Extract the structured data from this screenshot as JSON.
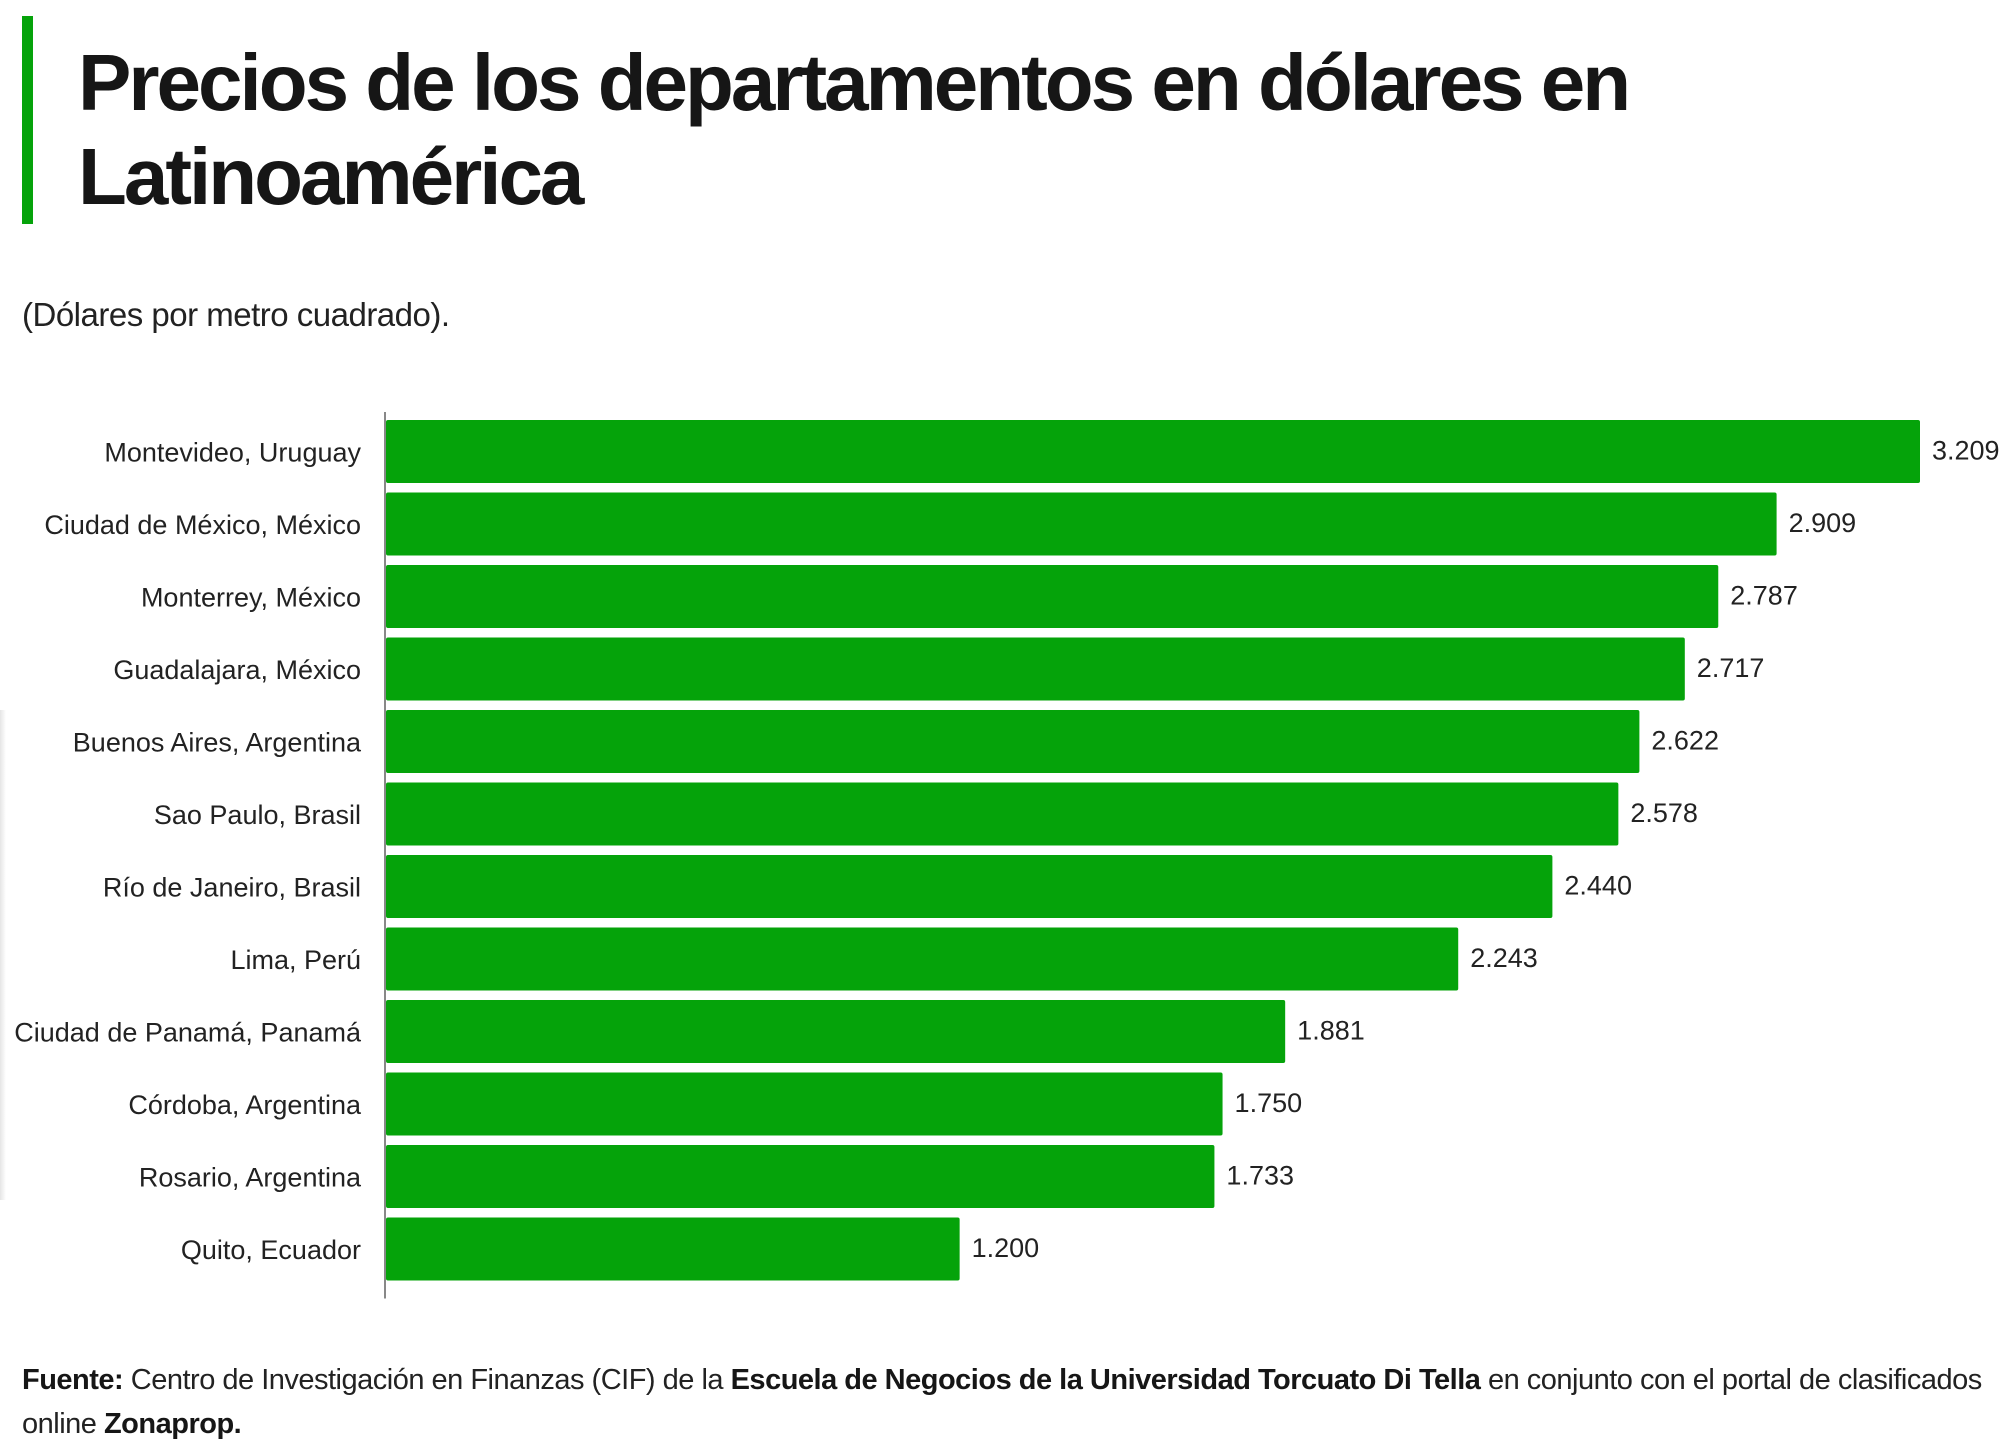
{
  "header": {
    "title": "Precios de los departamentos en dólares en Latinoamérica",
    "subtitle": "(Dólares por metro cuadrado)."
  },
  "colors": {
    "accent": "#05a30a",
    "bar": "#05a30a",
    "axis": "#888888",
    "text": "#222222"
  },
  "chart_data": {
    "type": "bar",
    "orientation": "horizontal",
    "title": "Precios de los departamentos en dólares en Latinoamérica",
    "subtitle": "(Dólares por metro cuadrado).",
    "xlabel": "",
    "ylabel": "",
    "grid": false,
    "legend": "none",
    "xlim": [
      0,
      3209
    ],
    "categories": [
      "Montevideo, Uruguay",
      "Ciudad de México, México",
      "Monterrey, México",
      "Guadalajara, México",
      "Buenos Aires, Argentina",
      "Sao Paulo, Brasil",
      "Río de Janeiro, Brasil",
      "Lima, Perú",
      "Ciudad de Panamá, Panamá",
      "Córdoba, Argentina",
      "Rosario, Argentina",
      "Quito, Ecuador"
    ],
    "values": [
      3209,
      2909,
      2787,
      2717,
      2622,
      2578,
      2440,
      2243,
      1881,
      1750,
      1733,
      1200
    ],
    "value_labels": [
      "3.209",
      "2.909",
      "2.787",
      "2.717",
      "2.622",
      "2.578",
      "2.440",
      "2.243",
      "1.881",
      "1.750",
      "1.733",
      "1.200"
    ]
  },
  "source": {
    "label": "Fuente:",
    "text1": " Centro de Investigación en Finanzas (CIF) de la ",
    "bold1": "Escuela de Negocios de la Universidad Torcuato Di Tella",
    "text2": " en conjunto con el portal de clasificados online ",
    "bold2": "Zonaprop."
  }
}
